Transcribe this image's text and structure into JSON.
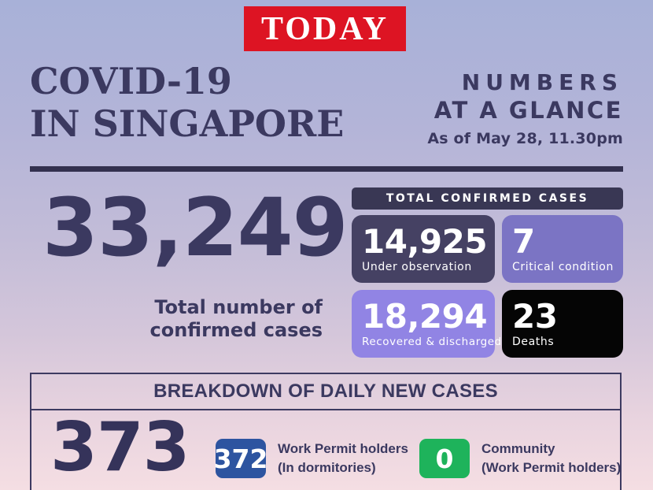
{
  "logo": {
    "text": "TODAY",
    "bg_color": "#dd1423"
  },
  "header": {
    "title_line1": "COVID-19",
    "title_line2": "IN SINGAPORE",
    "subtitle_line1": "NUMBERS",
    "subtitle_line2": "AT A GLANCE",
    "as_of": "As of May 28, 11.30pm"
  },
  "total_confirmed": {
    "value": "33,249",
    "label_line1": "Total number of",
    "label_line2": "confirmed cases"
  },
  "confirmed_panel": {
    "header": "TOTAL CONFIRMED CASES",
    "tiles": [
      {
        "value": "14,925",
        "label": "Under observation",
        "bg": "#454163"
      },
      {
        "value": "7",
        "label": "Critical condition",
        "bg": "#7b74c4"
      },
      {
        "value": "18,294",
        "label": "Recovered & discharged",
        "bg": "#9184e4"
      },
      {
        "value": "23",
        "label": "Deaths",
        "bg": "#050505"
      }
    ]
  },
  "breakdown": {
    "header": "BREAKDOWN OF DAILY NEW CASES",
    "total": "373",
    "items": [
      {
        "value": "372",
        "badge_color": "#2d54a0",
        "label_line1": "Work Permit holders",
        "label_line2": "(In dormitories)"
      },
      {
        "value": "0",
        "badge_color": "#1eb35b",
        "label_line1": "Community",
        "label_line2": "(Work Permit holders)"
      }
    ]
  },
  "colors": {
    "accent_navy": "#3b3960",
    "divider": "#33314f",
    "bg_gradient_top": "#a8b1d8",
    "bg_gradient_bottom": "#f5dee3"
  },
  "chart_data": {
    "type": "table",
    "title": "COVID-19 IN SINGAPORE — NUMBERS AT A GLANCE",
    "as_of": "As of May 28, 11.30pm",
    "source": "TODAY",
    "categories": [
      "Total number of confirmed cases",
      "Under observation",
      "Critical condition",
      "Recovered & discharged",
      "Deaths",
      "Daily new cases (total)",
      "Daily new cases - Work Permit holders (In dormitories)",
      "Daily new cases - Community (Work Permit holders)"
    ],
    "values": [
      33249,
      14925,
      7,
      18294,
      23,
      373,
      372,
      0
    ]
  }
}
